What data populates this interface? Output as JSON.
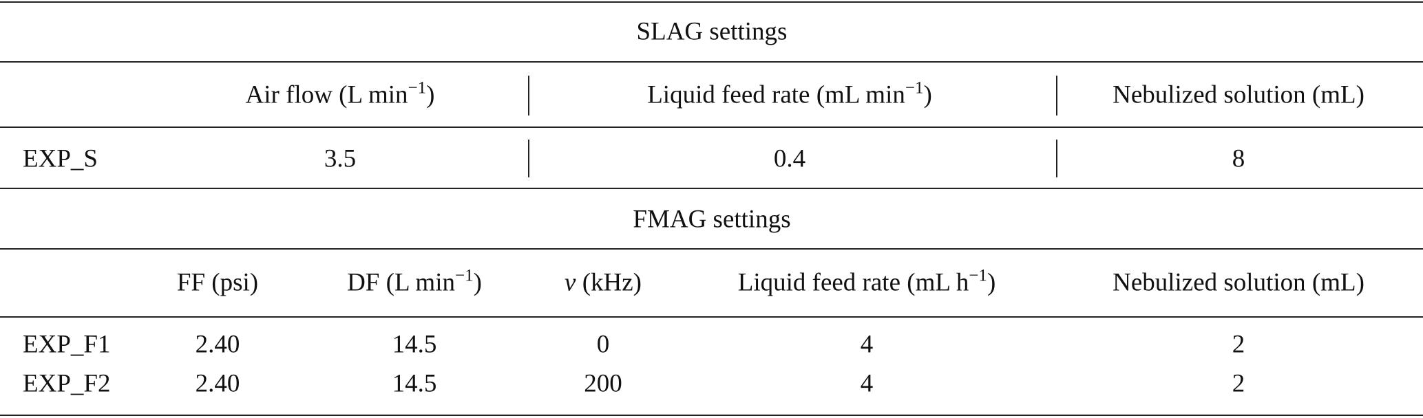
{
  "slag": {
    "title": "SLAG settings",
    "headers": {
      "air_flow": {
        "base": "Air flow (L min",
        "sup": "−1",
        "close": ")"
      },
      "liquid_feed": {
        "base": "Liquid feed rate (mL min",
        "sup": "−1",
        "close": ")"
      },
      "nebulized": {
        "base": "Nebulized solution (mL)"
      }
    },
    "rows": [
      {
        "label": "EXP_S",
        "air_flow": "3.5",
        "liquid_feed": "0.4",
        "nebulized": "8"
      }
    ]
  },
  "fmag": {
    "title": "FMAG settings",
    "headers": {
      "ff": "FF (psi)",
      "df": {
        "base": "DF (L min",
        "sup": "−1",
        "close": ")"
      },
      "nu": {
        "sym": "ν",
        "rest": " (kHz)"
      },
      "liquid_feed": {
        "base": "Liquid feed rate (mL h",
        "sup": "−1",
        "close": ")"
      },
      "nebulized": "Nebulized solution (mL)"
    },
    "rows": [
      {
        "label": "EXP_F1",
        "ff": "2.40",
        "df": "14.5",
        "nu": "0",
        "liquid_feed": "4",
        "nebulized": "2"
      },
      {
        "label": "EXP_F2",
        "ff": "2.40",
        "df": "14.5",
        "nu": "200",
        "liquid_feed": "4",
        "nebulized": "2"
      }
    ]
  }
}
